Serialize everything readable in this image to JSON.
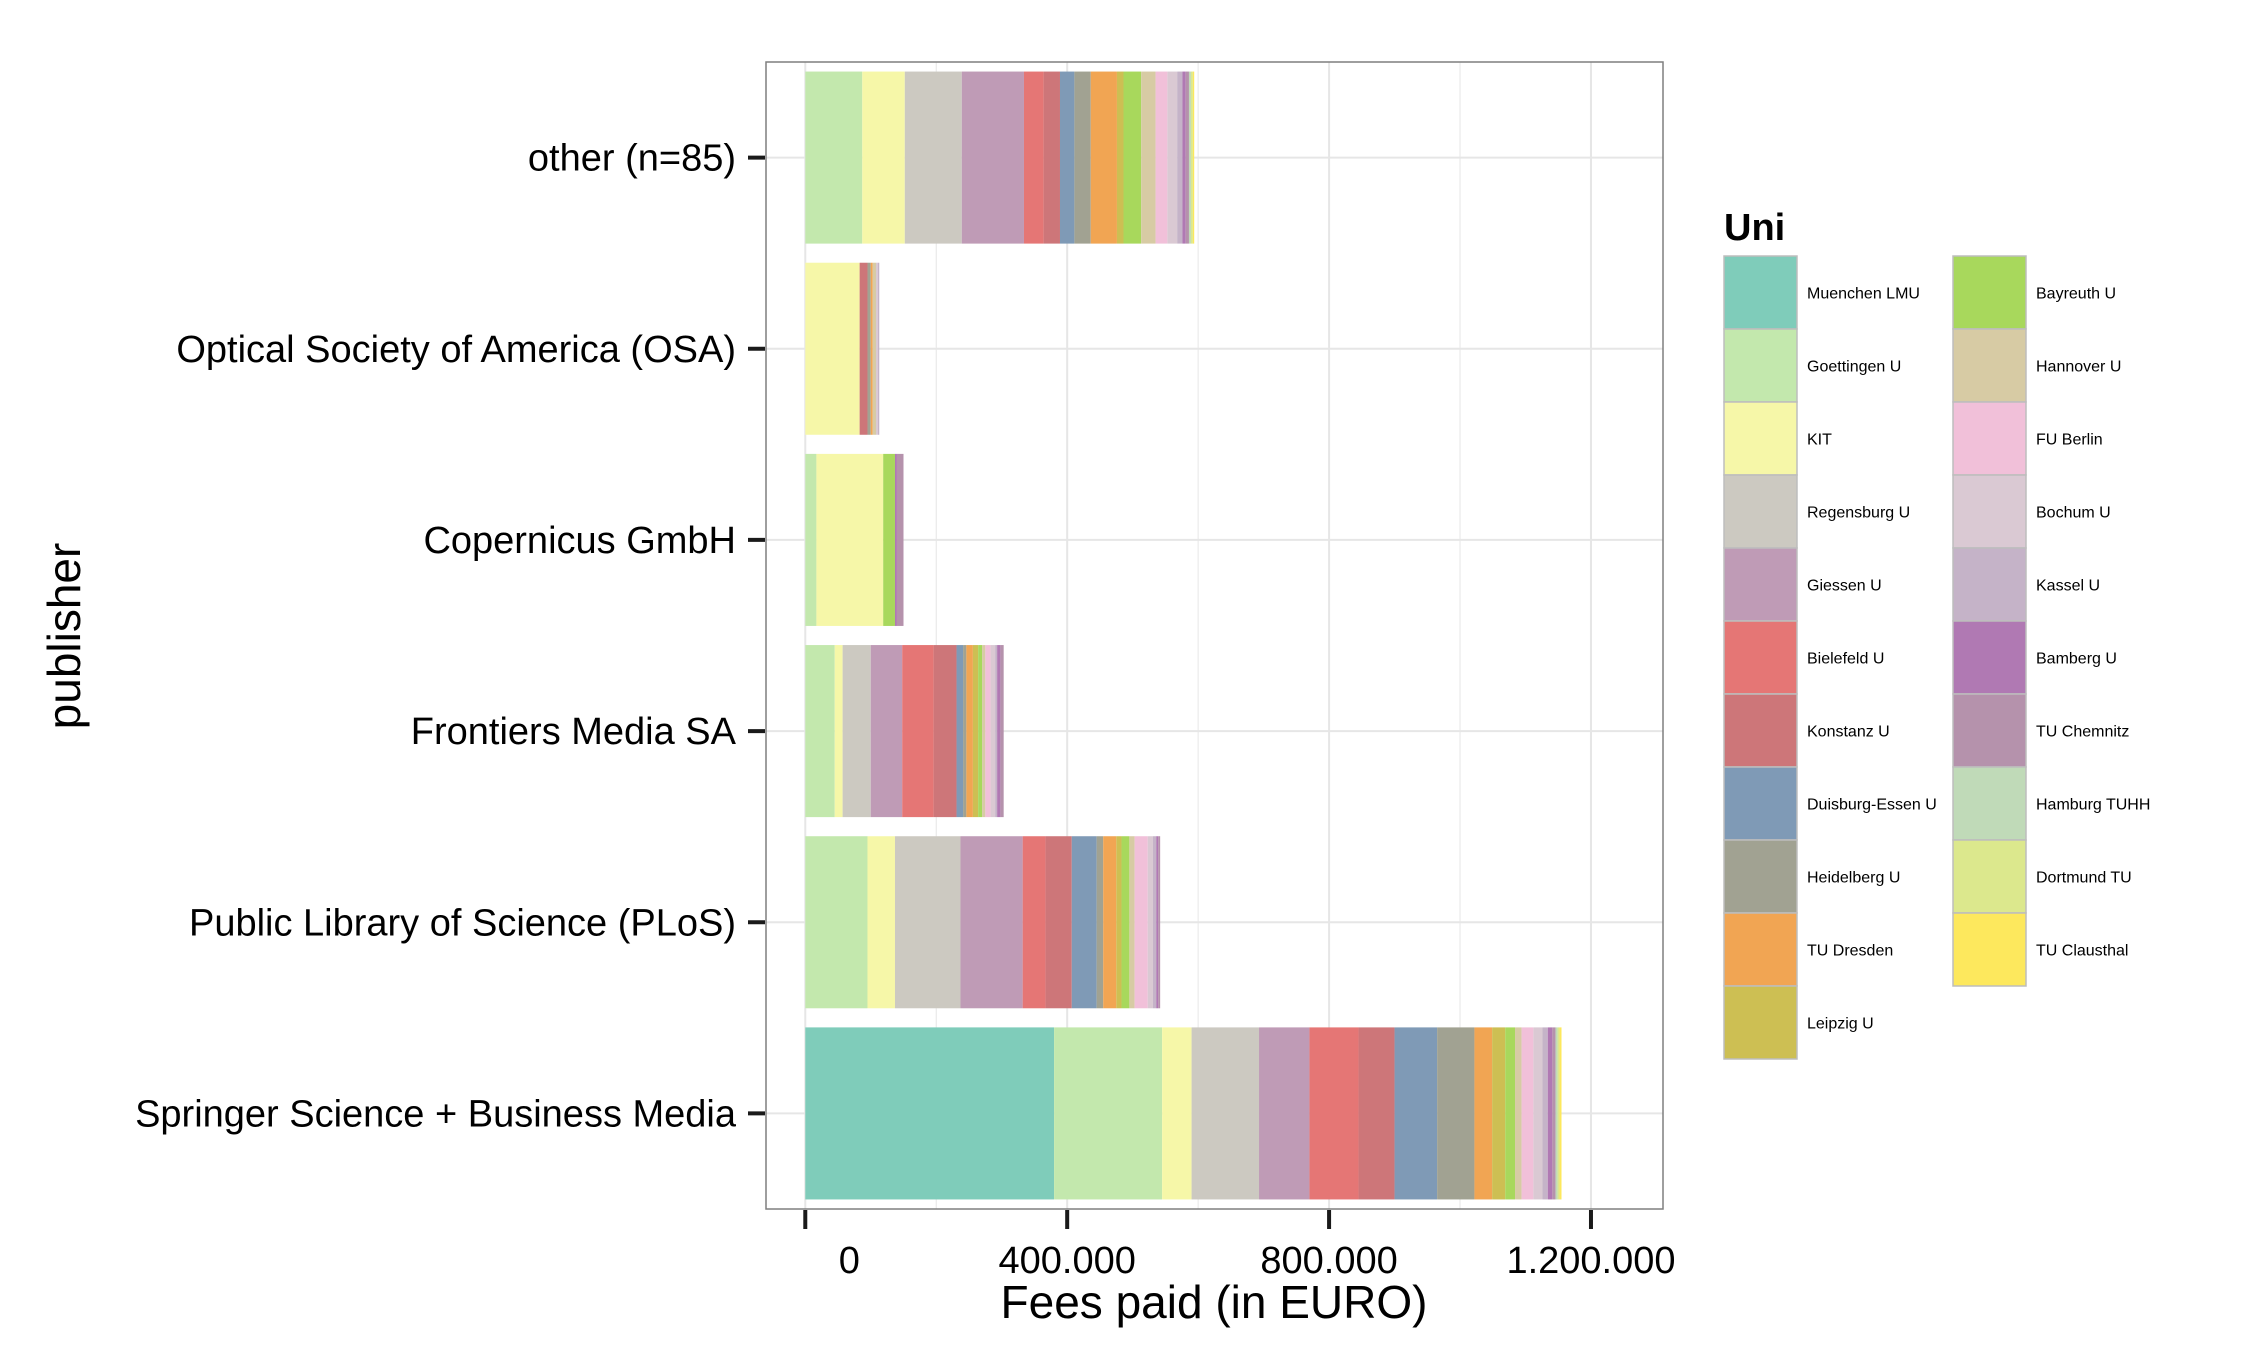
{
  "chart_data": {
    "type": "bar",
    "orientation": "horizontal",
    "stacked": true,
    "title": "",
    "xlabel": "Fees paid (in EURO)",
    "ylabel": "publisher",
    "xlim": [
      -60000,
      1310000
    ],
    "xticks": [
      0,
      400000,
      800000,
      1200000
    ],
    "xtick_labels": [
      "0",
      "400.000",
      "800.000",
      "1.200.000"
    ],
    "grid": true,
    "legend_title": "Uni",
    "legend_position": "right",
    "categories": [
      "other (n=85)",
      "Optical Society of America (OSA)",
      "Copernicus GmbH",
      "Frontiers Media SA",
      "Public Library of Science (PLoS)",
      "Springer Science + Business Media"
    ],
    "series": [
      {
        "name": "Muenchen LMU",
        "color": "#7fccba",
        "values": [
          0,
          0,
          0,
          0,
          0,
          380000
        ]
      },
      {
        "name": "Goettingen U",
        "color": "#c3e8ad",
        "values": [
          87000,
          0,
          17000,
          45000,
          95000,
          165000
        ]
      },
      {
        "name": "KIT",
        "color": "#f6f7a8",
        "values": [
          65000,
          83000,
          102000,
          12000,
          42000,
          45000
        ]
      },
      {
        "name": "Regensburg U",
        "color": "#ccc9c1",
        "values": [
          87000,
          0,
          0,
          43000,
          100000,
          103000
        ]
      },
      {
        "name": "Giessen U",
        "color": "#bf9bb6",
        "values": [
          95000,
          0,
          0,
          48000,
          95000,
          77000
        ]
      },
      {
        "name": "Bielefeld U",
        "color": "#e57675",
        "values": [
          30000,
          0,
          0,
          48000,
          35000,
          75000
        ]
      },
      {
        "name": "Konstanz U",
        "color": "#cd7679",
        "values": [
          25000,
          12000,
          0,
          35000,
          40000,
          55000
        ]
      },
      {
        "name": "Duisburg-Essen U",
        "color": "#7f9ab6",
        "values": [
          22000,
          0,
          0,
          10000,
          38000,
          65000
        ]
      },
      {
        "name": "Heidelberg U",
        "color": "#a1a292",
        "values": [
          25000,
          5000,
          0,
          5000,
          10000,
          57000
        ]
      },
      {
        "name": "TU Dresden",
        "color": "#f1a553",
        "values": [
          40000,
          3000,
          0,
          10000,
          20000,
          27000
        ]
      },
      {
        "name": "Leipzig U",
        "color": "#cdbf53",
        "values": [
          10000,
          0,
          0,
          8000,
          8000,
          20000
        ]
      },
      {
        "name": "Bayreuth U",
        "color": "#a8d85c",
        "values": [
          27000,
          0,
          18000,
          6000,
          12000,
          15000
        ]
      },
      {
        "name": "Hannover U",
        "color": "#d7cba4",
        "values": [
          22000,
          5000,
          0,
          5000,
          8000,
          10000
        ]
      },
      {
        "name": "FU Berlin",
        "color": "#f1c0d9",
        "values": [
          18000,
          0,
          0,
          8000,
          20000,
          18000
        ]
      },
      {
        "name": "Bochum U",
        "color": "#dac9d3",
        "values": [
          15000,
          3000,
          0,
          7000,
          8000,
          14000
        ]
      },
      {
        "name": "Kassel U",
        "color": "#c5b3c8",
        "values": [
          8000,
          2000,
          0,
          3000,
          5000,
          8000
        ]
      },
      {
        "name": "Bamberg U",
        "color": "#b079b3",
        "values": [
          5000,
          0,
          3000,
          5000,
          3000,
          7000
        ]
      },
      {
        "name": "TU Chemnitz",
        "color": "#b592ac",
        "values": [
          5000,
          0,
          10000,
          5000,
          3000,
          5000
        ]
      },
      {
        "name": "Hamburg TUHH",
        "color": "#c0dab8",
        "values": [
          3000,
          0,
          0,
          0,
          0,
          3000
        ]
      },
      {
        "name": "Dortmund TU",
        "color": "#dce88d",
        "values": [
          3000,
          0,
          0,
          0,
          0,
          3000
        ]
      },
      {
        "name": "TU Clausthal",
        "color": "#fde85d",
        "values": [
          2000,
          0,
          0,
          0,
          0,
          3000
        ]
      }
    ]
  },
  "colors": {
    "grid": "#e6e6e6",
    "panel_border": "#7f7f7f",
    "tick": "#1a1a1a",
    "legend_key_border": "#bdbdbd"
  }
}
